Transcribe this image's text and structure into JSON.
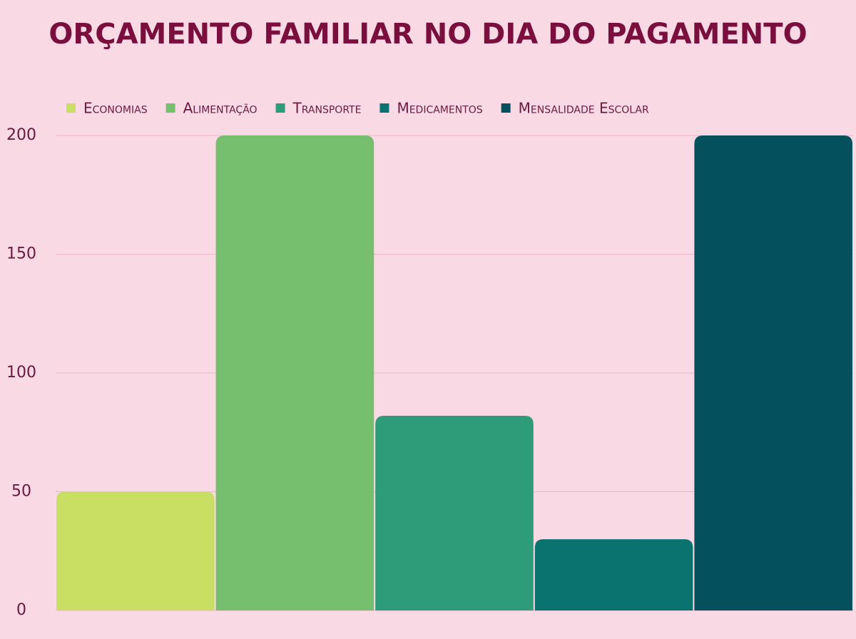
{
  "chart_data": {
    "type": "bar",
    "title": "ORÇAMENTO FAMILIAR NO DIA DO PAGAMENTO",
    "categories": [
      "Economias",
      "Alimentação",
      "Transporte",
      "Medicamentos",
      "Mensalidade Escolar"
    ],
    "values": [
      50,
      200,
      82,
      30,
      200
    ],
    "colors": [
      "#c8df63",
      "#76bf6f",
      "#2e9c78",
      "#0b736f",
      "#05505d"
    ],
    "ylim": [
      0,
      200
    ],
    "yticks": [
      0,
      50,
      100,
      150,
      200
    ],
    "grid": true,
    "legend": "top"
  }
}
